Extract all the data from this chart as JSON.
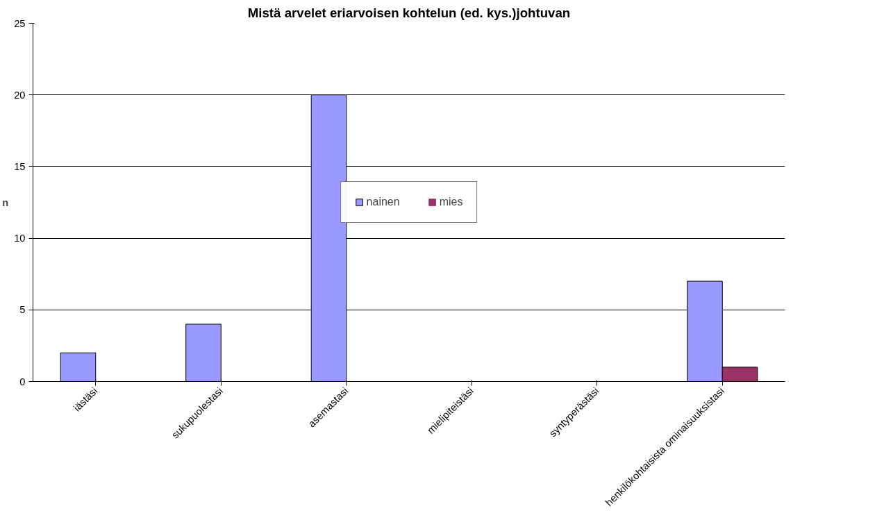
{
  "chart_data": {
    "type": "bar",
    "title": "Mistä arvelet eriarvoisen kohtelun (ed. kys.)johtuvan",
    "ylabel": "n",
    "categories": [
      "iästäsi",
      "sukupuolestasi",
      "asemastasi",
      "mielipiteistäsi",
      "syntyperästäsi",
      "henkilökohtaisista ominaisuuksistasi"
    ],
    "series": [
      {
        "name": "nainen",
        "color": "#9999ff",
        "values": [
          2,
          4,
          20,
          0,
          0,
          7
        ]
      },
      {
        "name": "mies",
        "color": "#993366",
        "values": [
          0,
          0,
          0,
          0,
          0,
          1
        ]
      }
    ],
    "ylim": [
      0,
      25
    ],
    "yticks": [
      0,
      5,
      10,
      15,
      20,
      25
    ],
    "grid": "y",
    "legend": "center"
  }
}
